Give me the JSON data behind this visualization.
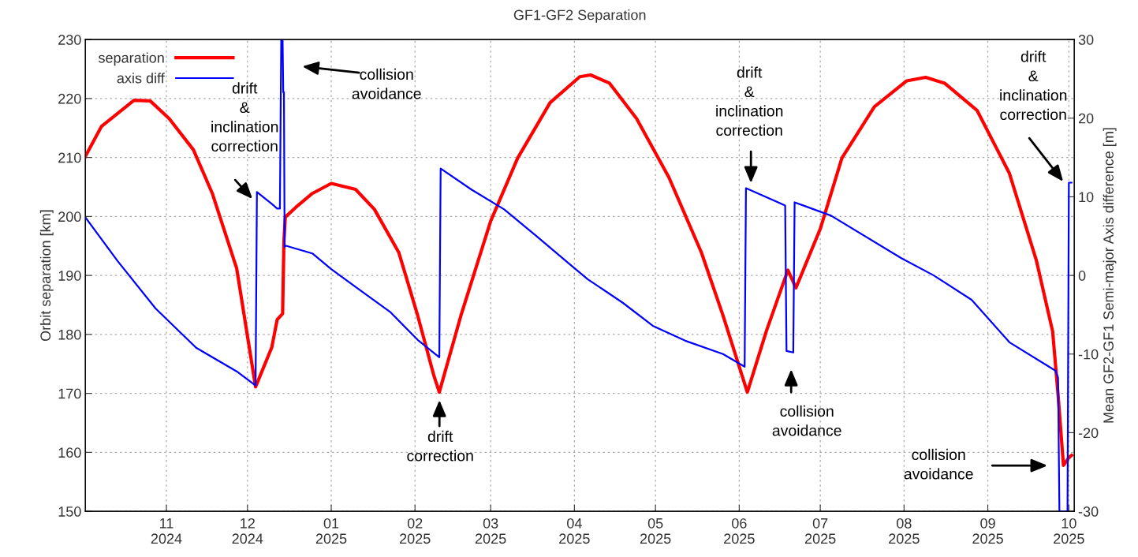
{
  "chart_data": {
    "type": "line",
    "title": "GF1-GF2 Separation",
    "ylabel": "Orbit separation [km]",
    "y2label": "Mean GF2-GF1 Semi-major Axis difference [m]",
    "xlim": [
      "2024-10-02",
      "2025-10-03"
    ],
    "xticks": [
      {
        "value": "2024-11-01",
        "label": "11\n2024"
      },
      {
        "value": "2024-12-01",
        "label": "12\n2024"
      },
      {
        "value": "2025-01-01",
        "label": "01\n2025"
      },
      {
        "value": "2025-02-01",
        "label": "02\n2025"
      },
      {
        "value": "2025-03-01",
        "label": "03\n2025"
      },
      {
        "value": "2025-04-01",
        "label": "04\n2025"
      },
      {
        "value": "2025-05-01",
        "label": "05\n2025"
      },
      {
        "value": "2025-06-01",
        "label": "06\n2025"
      },
      {
        "value": "2025-07-01",
        "label": "07\n2025"
      },
      {
        "value": "2025-08-01",
        "label": "08\n2025"
      },
      {
        "value": "2025-09-01",
        "label": "09\n2025"
      },
      {
        "value": "2025-10-01",
        "label": "10\n2025"
      }
    ],
    "ylim": [
      150,
      230
    ],
    "yticks": [
      150,
      160,
      170,
      180,
      190,
      200,
      210,
      220,
      230
    ],
    "y2lim": [
      -30,
      30
    ],
    "y2ticks": [
      -30,
      -20,
      -10,
      0,
      10,
      20,
      30
    ],
    "grid": true,
    "legend": "top left",
    "series": [
      {
        "name": "separation",
        "color": "#ff0000",
        "x": [
          "2024-10-02",
          "2024-10-08",
          "2024-10-20",
          "2024-10-26",
          "2024-11-02",
          "2024-11-11",
          "2024-11-18",
          "2024-11-27",
          "2024-12-04",
          "2024-12-10",
          "2024-12-12",
          "2024-12-14",
          "2024-12-14T12:00",
          "2024-12-15",
          "2024-12-19",
          "2024-12-25",
          "2025-01-01",
          "2025-01-10",
          "2025-01-17",
          "2025-01-26",
          "2025-02-02",
          "2025-02-08",
          "2025-02-10",
          "2025-02-18",
          "2025-03-01",
          "2025-03-11",
          "2025-03-23",
          "2025-04-03",
          "2025-04-07",
          "2025-04-14",
          "2025-04-24",
          "2025-05-06",
          "2025-05-18",
          "2025-05-26",
          "2025-06-04",
          "2025-06-11",
          "2025-06-19",
          "2025-06-22",
          "2025-07-01",
          "2025-07-09",
          "2025-07-21",
          "2025-08-02",
          "2025-08-09",
          "2025-08-16",
          "2025-08-28",
          "2025-09-09",
          "2025-09-19",
          "2025-09-25",
          "2025-09-27",
          "2025-09-29",
          "2025-10-01",
          "2025-10-02"
        ],
        "values": [
          210.2,
          215.3,
          219.7,
          219.6,
          216.6,
          211.3,
          203.9,
          191.2,
          171.1,
          177.8,
          182.5,
          183.5,
          195.9,
          199.9,
          201.6,
          203.9,
          205.6,
          204.6,
          201.2,
          193.9,
          183.2,
          173,
          170.2,
          183.2,
          199.2,
          209.9,
          219.3,
          223.7,
          224.0,
          222.6,
          216.6,
          206.6,
          193.9,
          183.2,
          170.2,
          180.5,
          190.9,
          187.9,
          197.9,
          209.9,
          218.6,
          223,
          223.6,
          222.6,
          218,
          207.3,
          192.5,
          180.5,
          169.8,
          157.8,
          159.1,
          159.5
        ]
      },
      {
        "name": "axis diff",
        "color": "#0000ff",
        "axis": "y2",
        "x": [
          "2024-10-02",
          "2024-10-14",
          "2024-10-28",
          "2024-11-12",
          "2024-11-27",
          "2024-12-04",
          "2024-12-04T12:00",
          "2024-12-10",
          "2024-12-12",
          "2024-12-13",
          "2024-12-13T12:00",
          "2024-12-14",
          "2024-12-14T06:00",
          "2024-12-14T12:00",
          "2024-12-14T18:00",
          "2024-12-15",
          "2024-12-25",
          "2025-01-01",
          "2025-01-11",
          "2025-01-23",
          "2025-02-02",
          "2025-02-10",
          "2025-02-10T12:00",
          "2025-02-22",
          "2025-03-06",
          "2025-03-18",
          "2025-03-30",
          "2025-04-06",
          "2025-04-19",
          "2025-04-30",
          "2025-05-12",
          "2025-05-26",
          "2025-06-03",
          "2025-06-03T12:00",
          "2025-06-18",
          "2025-06-18T12:00",
          "2025-06-21",
          "2025-06-21T12:00",
          "2025-07-05",
          "2025-07-31",
          "2025-08-12",
          "2025-08-26",
          "2025-09-09",
          "2025-09-26",
          "2025-09-27",
          "2025-09-27T12:00",
          "2025-09-30T12:00",
          "2025-10-01",
          "2025-10-02"
        ],
        "values": [
          7.4,
          1.8,
          -4.2,
          -9.2,
          -12.2,
          -14.0,
          10.6,
          9.1,
          8.5,
          8.5,
          30,
          30,
          23.3,
          23.3,
          3.6,
          3.8,
          2.8,
          0.8,
          -1.7,
          -4.7,
          -8.2,
          -10.4,
          13.6,
          10.9,
          8.4,
          5.0,
          1.5,
          -0.5,
          -3.5,
          -6.4,
          -8.3,
          -10,
          -11.6,
          11.1,
          8.9,
          -9.6,
          -9.8,
          9.3,
          7.6,
          2.2,
          0,
          -3.1,
          -8.5,
          -12.1,
          -13,
          -30,
          -30,
          11.8,
          11.8
        ]
      }
    ],
    "annotations": [
      "drift\n&\ninclination\ncorrection",
      "collision\navoidance",
      "drift\ncorrection",
      "drift\n&\ninclination\ncorrection",
      "collision\navoidance",
      "drift\n&\ninclination\ncorrection",
      "collision\navoidance"
    ]
  }
}
